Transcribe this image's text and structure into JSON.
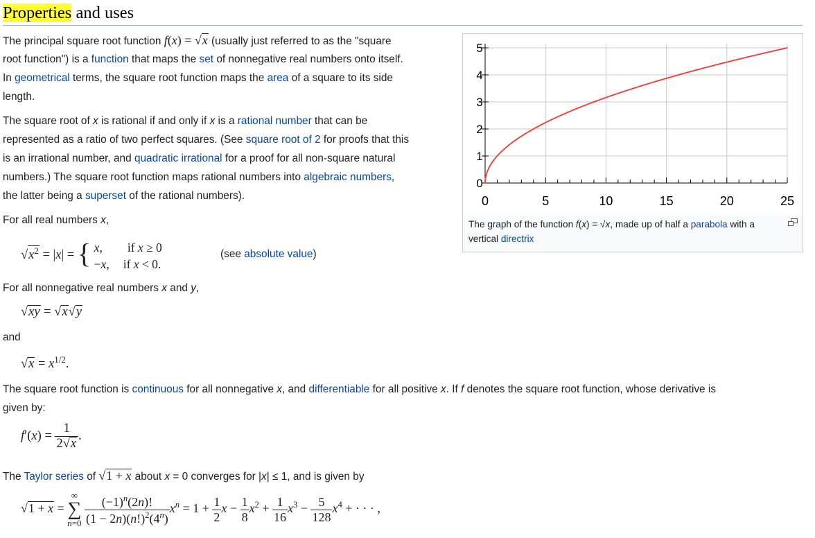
{
  "section": {
    "title_highlight": "Properties",
    "title_rest": " and uses"
  },
  "para1": {
    "line1_a": "The principal square root function ",
    "line1_b": " (usually just referred to as the \"square",
    "line2_a": "root function\") is a ",
    "link_function": "function",
    "line2_b": " that maps the ",
    "link_set": "set",
    "line2_c": " of nonnegative real numbers onto itself.",
    "line3_a": "In ",
    "link_geometrical": "geometrical",
    "line3_b": " terms, the square root function maps the ",
    "link_area": "area",
    "line3_c": " of a square to its side",
    "line4": "length."
  },
  "para2": {
    "line1_a": "The square root of ",
    "x": "x",
    "line1_b": " is rational if and only if ",
    "line1_c": " is a ",
    "link_rational_number": "rational number",
    "line1_d": " that can be",
    "line2_a": "represented as a ratio of two perfect squares. (See ",
    "link_sqrt2": "square root of 2",
    "line2_b": " for proofs that this",
    "line3_a": "is an irrational number, and ",
    "link_quadratic_irrational": "quadratic irrational",
    "line3_b": " for a proof for all non-square natural",
    "line4_a": "numbers.) The square root function maps rational numbers into ",
    "link_algebraic_numbers": "algebraic numbers",
    "line4_b": ",",
    "line5_a": "the latter being a ",
    "link_superset": "superset",
    "line5_b": " of the rational numbers)."
  },
  "para3": {
    "text_a": "For all real numbers ",
    "x": "x",
    "text_b": ","
  },
  "abs_note": {
    "a": "(see ",
    "link": "absolute value",
    "b": ")"
  },
  "para4": {
    "text_a": "For all nonnegative real numbers ",
    "x": "x",
    "text_b": " and ",
    "y": "y",
    "text_c": ","
  },
  "para5": {
    "text": "and"
  },
  "para6": {
    "a": "The square root function is ",
    "link_continuous": "continuous",
    "b": " for all nonnegative ",
    "x": "x",
    "c": ", and ",
    "link_differentiable": "differentiable",
    "d": " for all positive ",
    "e": ". If ",
    "f": "f",
    "g": " denotes the square root function, whose derivative is",
    "line2": "given by:"
  },
  "para7": {
    "a": "The ",
    "link_taylor": "Taylor series",
    "b": " of ",
    "c": " about ",
    "x": "x",
    "d": " = 0 converges for |",
    "e": "| ≤ 1, and is given by"
  },
  "figure": {
    "caption_a": "The graph of the function ",
    "caption_fx": "f",
    "caption_b": "(",
    "caption_x": "x",
    "caption_c": ") = √",
    "caption_d": ", made up of half a ",
    "link_parabola": "parabola",
    "caption_e": " with a",
    "caption_f": "vertical ",
    "link_directrix": "directrix",
    "icon": "magnify-clip-icon"
  },
  "colors": {
    "link": "#0645ad",
    "highlight": "#ffff33",
    "curve": "#ff3333",
    "grid": "#c8c8c8"
  },
  "chart_data": {
    "type": "line",
    "function": "sqrt(x)",
    "series": [
      {
        "x": [
          0,
          0.25,
          1,
          2.25,
          4,
          6.25,
          9,
          12.25,
          16,
          20.25,
          25
        ],
        "values": [
          0,
          0.5,
          1,
          1.5,
          2,
          2.5,
          3,
          3.5,
          4,
          4.5,
          5
        ]
      }
    ],
    "xlim": [
      0,
      25
    ],
    "ylim": [
      0,
      5
    ],
    "x_ticks": [
      "0",
      "5",
      "10",
      "15",
      "20",
      "25"
    ],
    "y_ticks": [
      "0",
      "1",
      "2",
      "3",
      "4",
      "5"
    ],
    "grid": true,
    "title": "",
    "xlabel": "",
    "ylabel": ""
  }
}
